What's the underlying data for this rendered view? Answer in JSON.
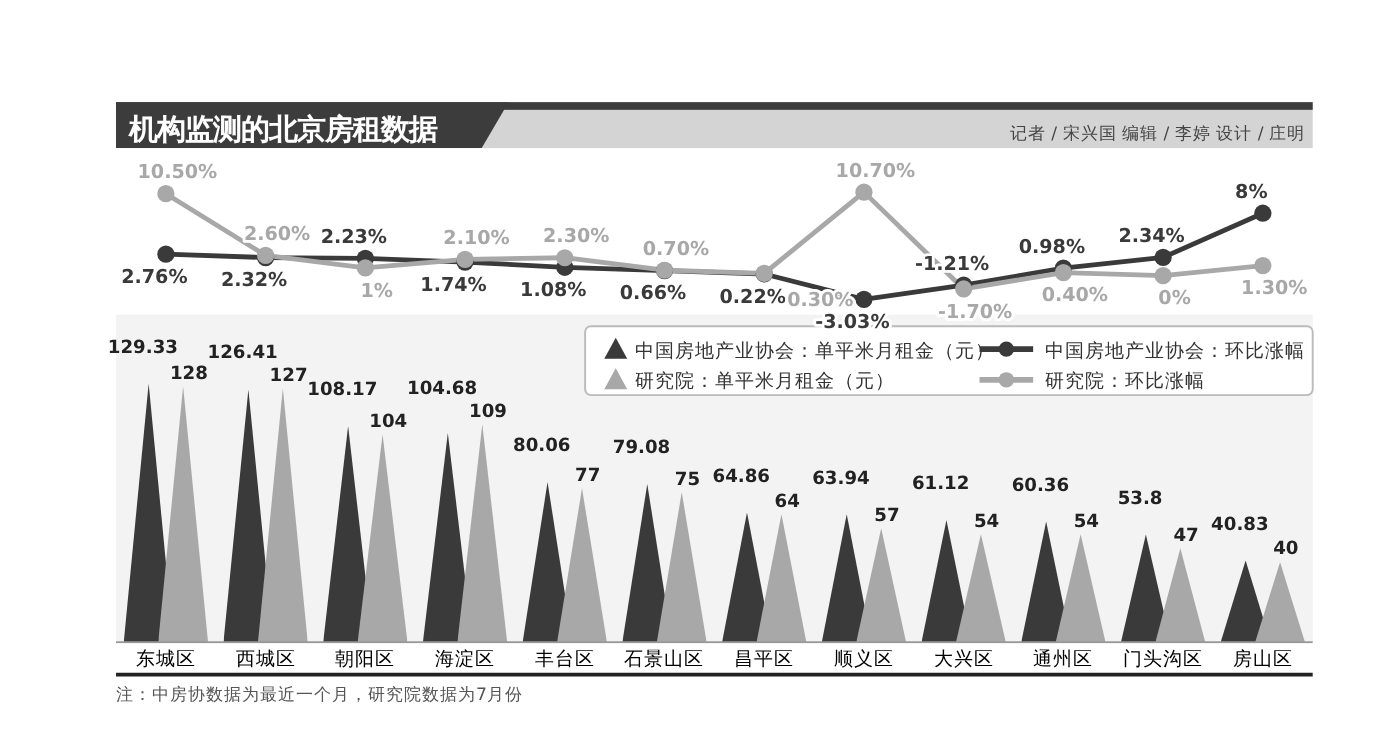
{
  "chart_data": [
    {
      "type": "line",
      "title": "机构监测的北京房租数据",
      "annotations": [
        "记者 / 宋兴国  编辑 / 李婷  设计 / 庄明"
      ],
      "categories": [
        null,
        null,
        null,
        null,
        null,
        null,
        null,
        null,
        null,
        null,
        null,
        null
      ],
      "marker": "circle",
      "legend": "bottom right",
      "series": [
        {
          "name": "中国房地产业协会：环比涨幅",
          "color": "#3a3a3a",
          "values": [
            2.76,
            2.32,
            2.23,
            1.74,
            1.08,
            0.66,
            0.22,
            -3.03,
            -1.21,
            0.98,
            2.34,
            8
          ],
          "value_labels": [
            "2.76%",
            "2.32%",
            "2.23%",
            "1.74%",
            "1.08%",
            "0.66%",
            "0.22%",
            "-3.03%",
            "-1.21%",
            "0.98%",
            "2.34%",
            "8%"
          ]
        },
        {
          "name": "研究院：环比涨幅",
          "color": "#a8a8a8",
          "values": [
            10.5,
            2.6,
            1,
            2.1,
            2.3,
            0.7,
            0.3,
            10.7,
            -1.7,
            0.4,
            0,
            1.3
          ],
          "value_labels": [
            "10.50%",
            "2.60%",
            "1%",
            "2.10%",
            "2.30%",
            "0.70%",
            "0.30%",
            "10.70%",
            "-1.70%",
            "0.40%",
            "0%",
            "1.30%"
          ]
        }
      ]
    },
    {
      "type": "bar",
      "annotations": [
        "注：中房协数据为最近一个月，研究院数据为7月份"
      ],
      "categories": [
        "东城区",
        "西城区",
        "朝阳区",
        "海淀区",
        "丰台区",
        "石景山区",
        "昌平区",
        "顺义区",
        "大兴区",
        "通州区",
        "门头沟区",
        "房山区"
      ],
      "data_labels": true,
      "legend": "top right",
      "series": [
        {
          "name": "中国房地产业协会：单平米月租金（元）",
          "color": "#3a3a3a",
          "values": [
            129.33,
            126.41,
            108.17,
            104.68,
            80.06,
            79.08,
            64.86,
            63.94,
            61.12,
            60.36,
            53.8,
            40.83
          ]
        },
        {
          "name": "研究院：单平米月租金（元）",
          "color": "#a8a8a8",
          "values": [
            128,
            127,
            104,
            109,
            77,
            75,
            64,
            57,
            54,
            54,
            47,
            40
          ]
        }
      ]
    }
  ]
}
